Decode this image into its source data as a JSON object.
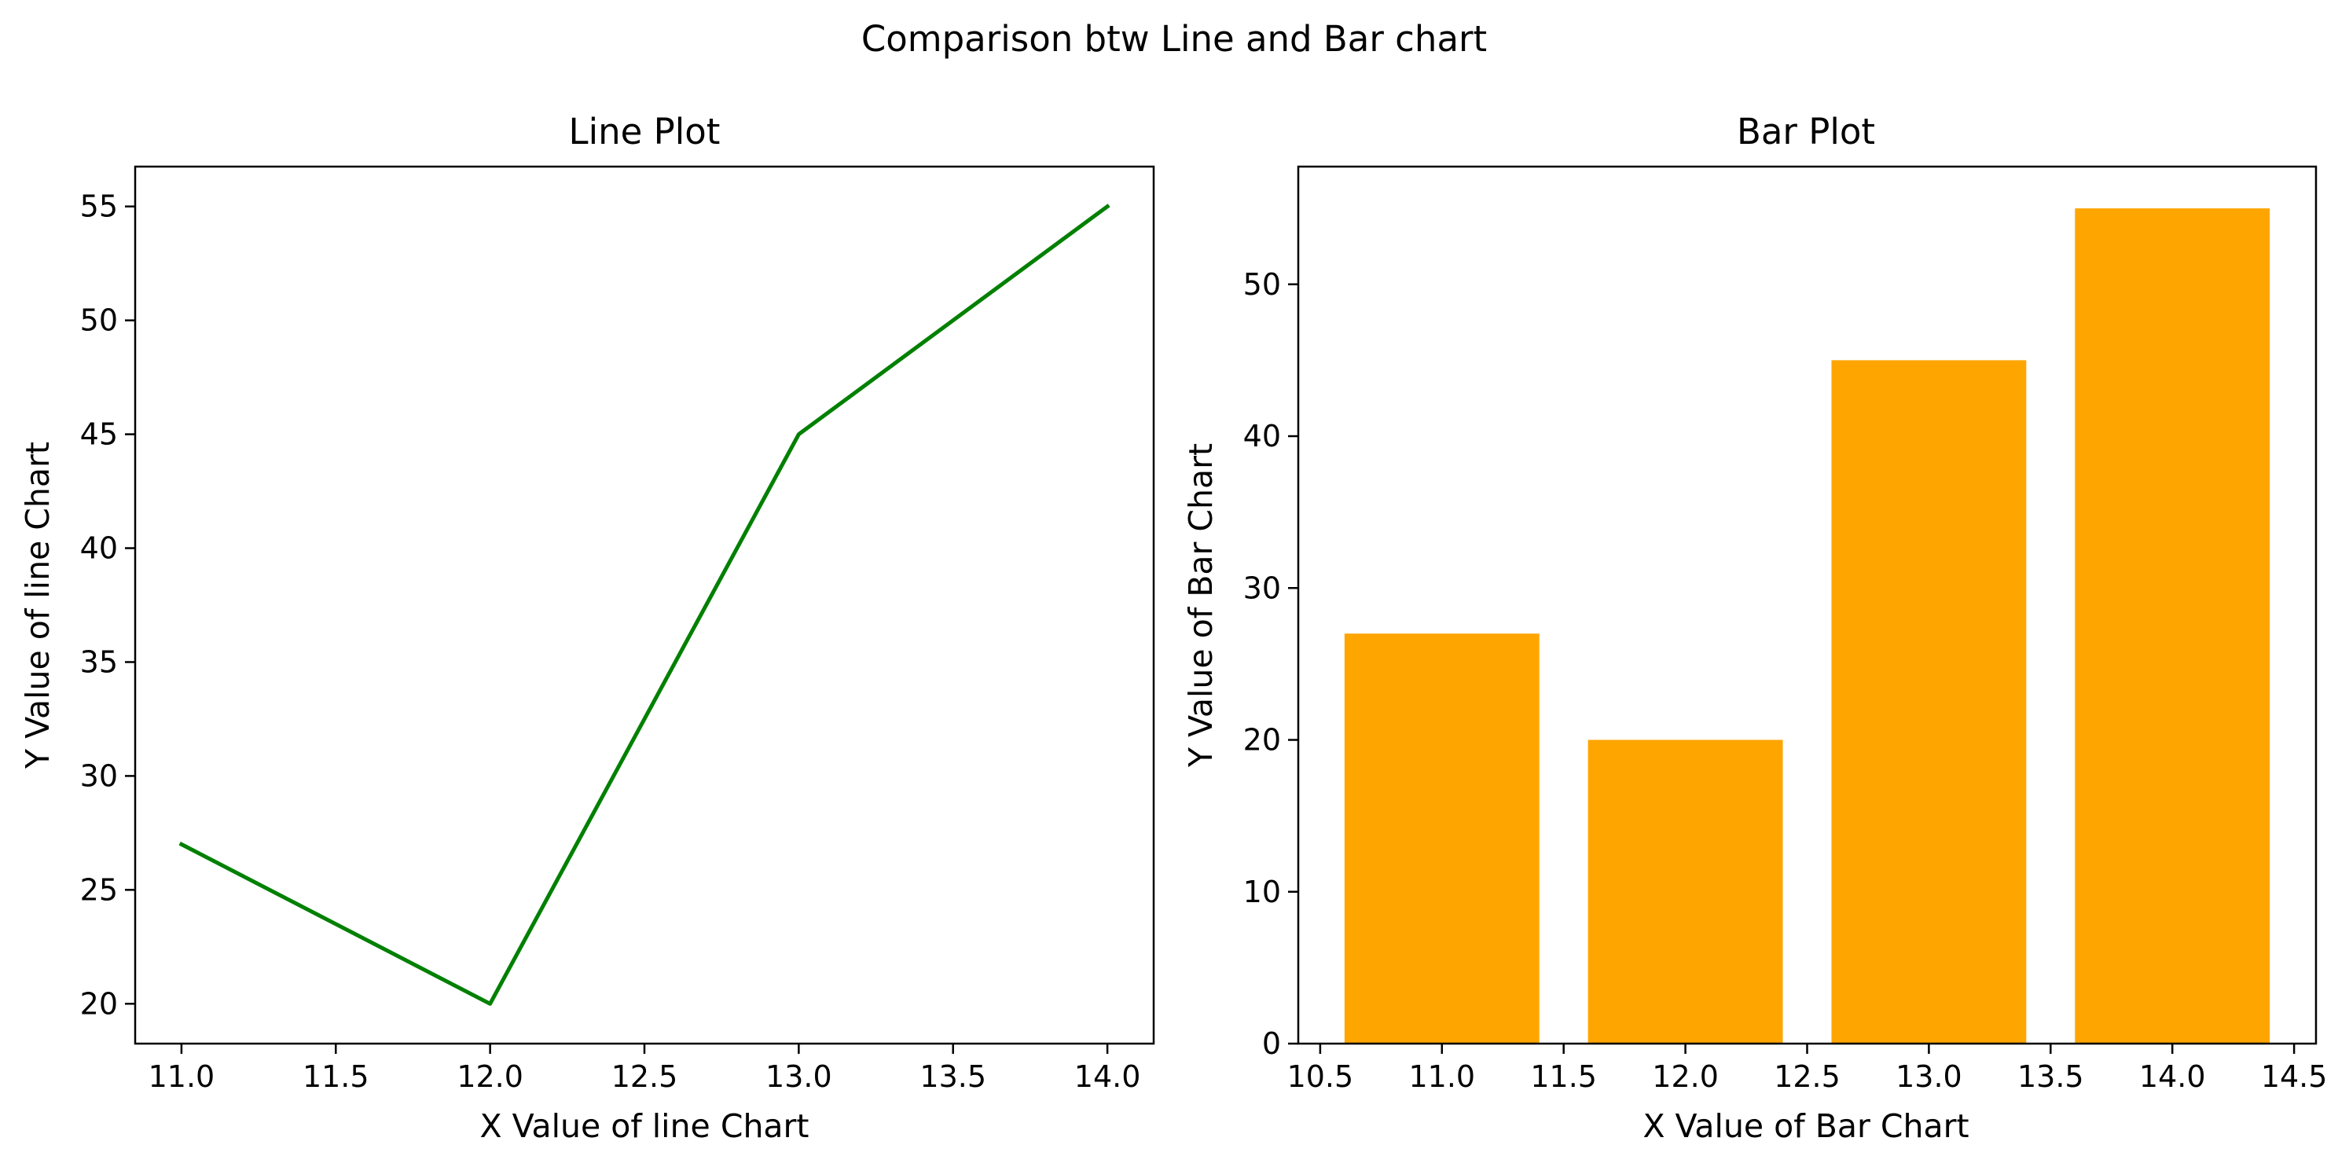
{
  "figure": {
    "suptitle": "Comparison btw Line and Bar chart"
  },
  "chart_data": [
    {
      "type": "line",
      "title": "Line Plot",
      "xlabel": "X Value of line Chart",
      "ylabel": "Y Value of line Chart",
      "x": [
        11,
        12,
        13,
        14
      ],
      "y": [
        27,
        20,
        45,
        55
      ],
      "xlim": [
        10.85,
        14.15
      ],
      "ylim": [
        18.25,
        56.75
      ],
      "xticks": [
        11.0,
        11.5,
        12.0,
        12.5,
        13.0,
        13.5,
        14.0
      ],
      "xtick_labels": [
        "11.0",
        "11.5",
        "12.0",
        "12.5",
        "13.0",
        "13.5",
        "14.0"
      ],
      "yticks": [
        20,
        25,
        30,
        35,
        40,
        45,
        50,
        55
      ],
      "ytick_labels": [
        "20",
        "25",
        "30",
        "35",
        "40",
        "45",
        "50",
        "55"
      ],
      "color": "#008000",
      "grid": false
    },
    {
      "type": "bar",
      "title": "Bar Plot",
      "xlabel": "X Value of Bar Chart",
      "ylabel": "Y Value of Bar Chart",
      "x": [
        11,
        12,
        13,
        14
      ],
      "values": [
        27,
        20,
        45,
        55
      ],
      "bar_width": 0.8,
      "xlim": [
        10.41,
        14.59
      ],
      "ylim": [
        0,
        57.75
      ],
      "xticks": [
        10.5,
        11.0,
        11.5,
        12.0,
        12.5,
        13.0,
        13.5,
        14.0,
        14.5
      ],
      "xtick_labels": [
        "10.5",
        "11.0",
        "11.5",
        "12.0",
        "12.5",
        "13.0",
        "13.5",
        "14.0",
        "14.5"
      ],
      "yticks": [
        0,
        10,
        20,
        30,
        40,
        50
      ],
      "ytick_labels": [
        "0",
        "10",
        "20",
        "30",
        "40",
        "50"
      ],
      "color": "#FFA500",
      "grid": false
    }
  ]
}
